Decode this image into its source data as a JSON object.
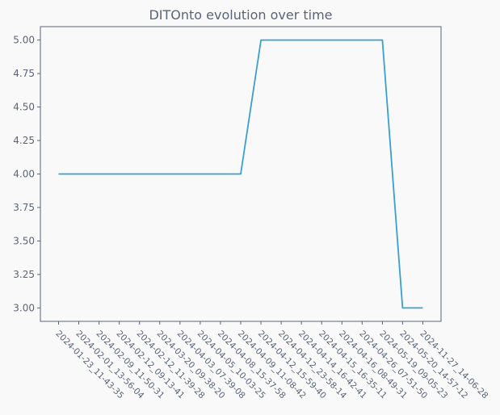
{
  "chart_data": {
    "type": "line",
    "title": "DITOnto evolution over time",
    "xlabel": "",
    "ylabel": "",
    "categories": [
      "2024-01-23_11-43-35",
      "2024-02-01_13-56-04",
      "2024-02-09_11-50-31",
      "2024-02-12_09-13-41",
      "2024-02-12_11-39-28",
      "2024-03-20_09-38-20",
      "2024-04-03_07-39-08",
      "2024-04-05_10-03-25",
      "2024-04-08_15-37-58",
      "2024-04-09_11-08-42",
      "2024-04-12_15-59-40",
      "2024-04-12_23-58-14",
      "2024-04-14_16-42-41",
      "2024-04-15_16-35-11",
      "2024-04-16_08-49-31",
      "2024-04-26_07-51-50",
      "2024-05-19_09-05-23",
      "2024-05-20_14-57-12",
      "2024-11-27_14-06-28"
    ],
    "series": [
      {
        "values": [
          4,
          4,
          4,
          4,
          4,
          4,
          4,
          4,
          4,
          4,
          5,
          5,
          5,
          5,
          5,
          5,
          5,
          3,
          3
        ]
      }
    ],
    "yticks": [
      "3.00",
      "3.25",
      "3.50",
      "3.75",
      "4.00",
      "4.25",
      "4.50",
      "4.75",
      "5.00"
    ],
    "ylim": [
      2.9,
      5.1
    ],
    "grid": false,
    "legend": "none",
    "colors": {
      "line": "#3a9fd0",
      "axis": "#5a6478",
      "text": "#5a6478",
      "plot_background": "#f9f9f9"
    }
  }
}
